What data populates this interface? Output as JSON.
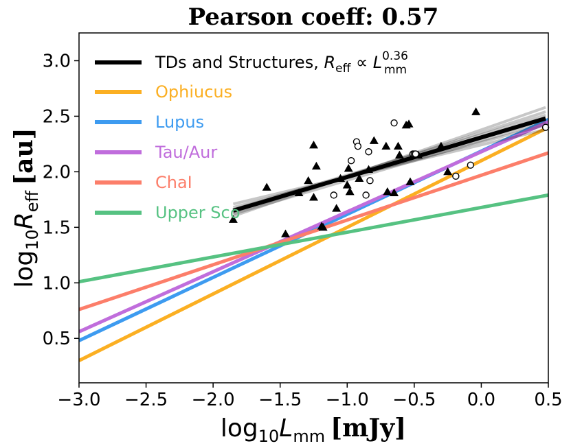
{
  "chart_data": {
    "type": "scatter",
    "title": "Pearson coeff: 0.57",
    "xlabel": {
      "prefix": "log",
      "sub": "10",
      "var": "L",
      "var_sub": "mm",
      "unit": "[mJy]"
    },
    "ylabel": {
      "prefix": "log",
      "sub": "10",
      "var": "R",
      "var_sub": "eff",
      "unit": "[au]"
    },
    "xlim": [
      -3.0,
      0.5
    ],
    "ylim": [
      0.1,
      3.25
    ],
    "xticks": [
      -3.0,
      -2.5,
      -2.0,
      -1.5,
      -1.0,
      -0.5,
      0.0,
      0.5
    ],
    "xtick_labels": [
      "−3.0",
      "−2.5",
      "−2.0",
      "−1.5",
      "−1.0",
      "−0.5",
      "0.0",
      "0.5"
    ],
    "yticks": [
      0.5,
      1.0,
      1.5,
      2.0,
      2.5,
      3.0
    ],
    "ytick_labels": [
      "0.5",
      "1.0",
      "1.5",
      "2.0",
      "2.5",
      "3.0"
    ],
    "fit": {
      "name": "TDs and Structures",
      "legend_label": {
        "text": "TDs and Structures, ",
        "var": "R",
        "var_sub": "eff",
        "rel": " ∝ ",
        "var2": "L",
        "var2_sub": "mm",
        "exp": "0.36"
      },
      "color": "#000000",
      "x_range": [
        -1.85,
        0.48
      ],
      "line": [
        [
          -1.85,
          1.65
        ],
        [
          0.48,
          2.48
        ]
      ],
      "samples": [
        [
          [
            -1.85,
            1.6
          ],
          [
            0.48,
            2.58
          ]
        ],
        [
          [
            -1.85,
            1.63
          ],
          [
            0.48,
            2.54
          ]
        ],
        [
          [
            -1.85,
            1.68
          ],
          [
            0.48,
            2.42
          ]
        ],
        [
          [
            -1.85,
            1.71
          ],
          [
            0.48,
            2.38
          ]
        ],
        [
          [
            -1.85,
            1.66
          ],
          [
            0.48,
            2.51
          ]
        ],
        [
          [
            -1.85,
            1.62
          ],
          [
            0.48,
            2.45
          ]
        ]
      ]
    },
    "region_lines": [
      {
        "name": "Ophiucus",
        "color": "#FBAF22",
        "points": [
          [
            -3.0,
            0.3
          ],
          [
            0.5,
            2.4
          ]
        ]
      },
      {
        "name": "Lupus",
        "color": "#3D9BF0",
        "points": [
          [
            -3.0,
            0.48
          ],
          [
            0.5,
            2.47
          ]
        ]
      },
      {
        "name": "Tau/Aur",
        "color": "#C06DDC",
        "points": [
          [
            -3.0,
            0.56
          ],
          [
            0.5,
            2.45
          ]
        ]
      },
      {
        "name": "ChaI",
        "color": "#FC7E6A",
        "points": [
          [
            -3.0,
            0.76
          ],
          [
            0.5,
            2.17
          ]
        ]
      },
      {
        "name": "Upper Sco",
        "color": "#56C282",
        "points": [
          [
            -3.0,
            1.01
          ],
          [
            0.5,
            1.79
          ]
        ]
      }
    ],
    "triangles": [
      [
        -1.85,
        1.57
      ],
      [
        -1.6,
        1.86
      ],
      [
        -1.46,
        1.44
      ],
      [
        -1.36,
        1.81
      ],
      [
        -1.29,
        1.92
      ],
      [
        -1.25,
        1.77
      ],
      [
        -1.25,
        2.24
      ],
      [
        -1.23,
        2.05
      ],
      [
        -1.19,
        1.51
      ],
      [
        -1.18,
        1.5
      ],
      [
        -1.08,
        1.67
      ],
      [
        -1.05,
        1.94
      ],
      [
        -1.0,
        1.88
      ],
      [
        -0.99,
        2.03
      ],
      [
        -0.98,
        1.82
      ],
      [
        -0.91,
        1.94
      ],
      [
        -0.84,
        2.02
      ],
      [
        -0.8,
        2.28
      ],
      [
        -0.71,
        2.23
      ],
      [
        -0.7,
        1.82
      ],
      [
        -0.65,
        1.81
      ],
      [
        -0.62,
        2.23
      ],
      [
        -0.61,
        2.15
      ],
      [
        -0.56,
        2.42
      ],
      [
        -0.54,
        2.43
      ],
      [
        -0.53,
        1.91
      ],
      [
        -0.47,
        2.15
      ],
      [
        -0.3,
        2.23
      ],
      [
        -0.25,
        2.0
      ],
      [
        -0.04,
        2.54
      ]
    ],
    "circles": [
      [
        -1.1,
        1.79
      ],
      [
        -0.97,
        2.1
      ],
      [
        -0.93,
        2.27
      ],
      [
        -0.92,
        2.23
      ],
      [
        -0.86,
        1.79
      ],
      [
        -0.84,
        2.18
      ],
      [
        -0.83,
        1.92
      ],
      [
        -0.65,
        2.44
      ],
      [
        -0.51,
        2.16
      ],
      [
        -0.5,
        2.16
      ],
      [
        -0.49,
        2.16
      ],
      [
        -0.19,
        1.96
      ],
      [
        -0.08,
        2.06
      ],
      [
        0.48,
        2.4
      ]
    ],
    "legend": {
      "position": "top-left",
      "entries": [
        "TDs and Structures",
        "Ophiucus",
        "Lupus",
        "Tau/Aur",
        "ChaI",
        "Upper Sco"
      ]
    }
  }
}
